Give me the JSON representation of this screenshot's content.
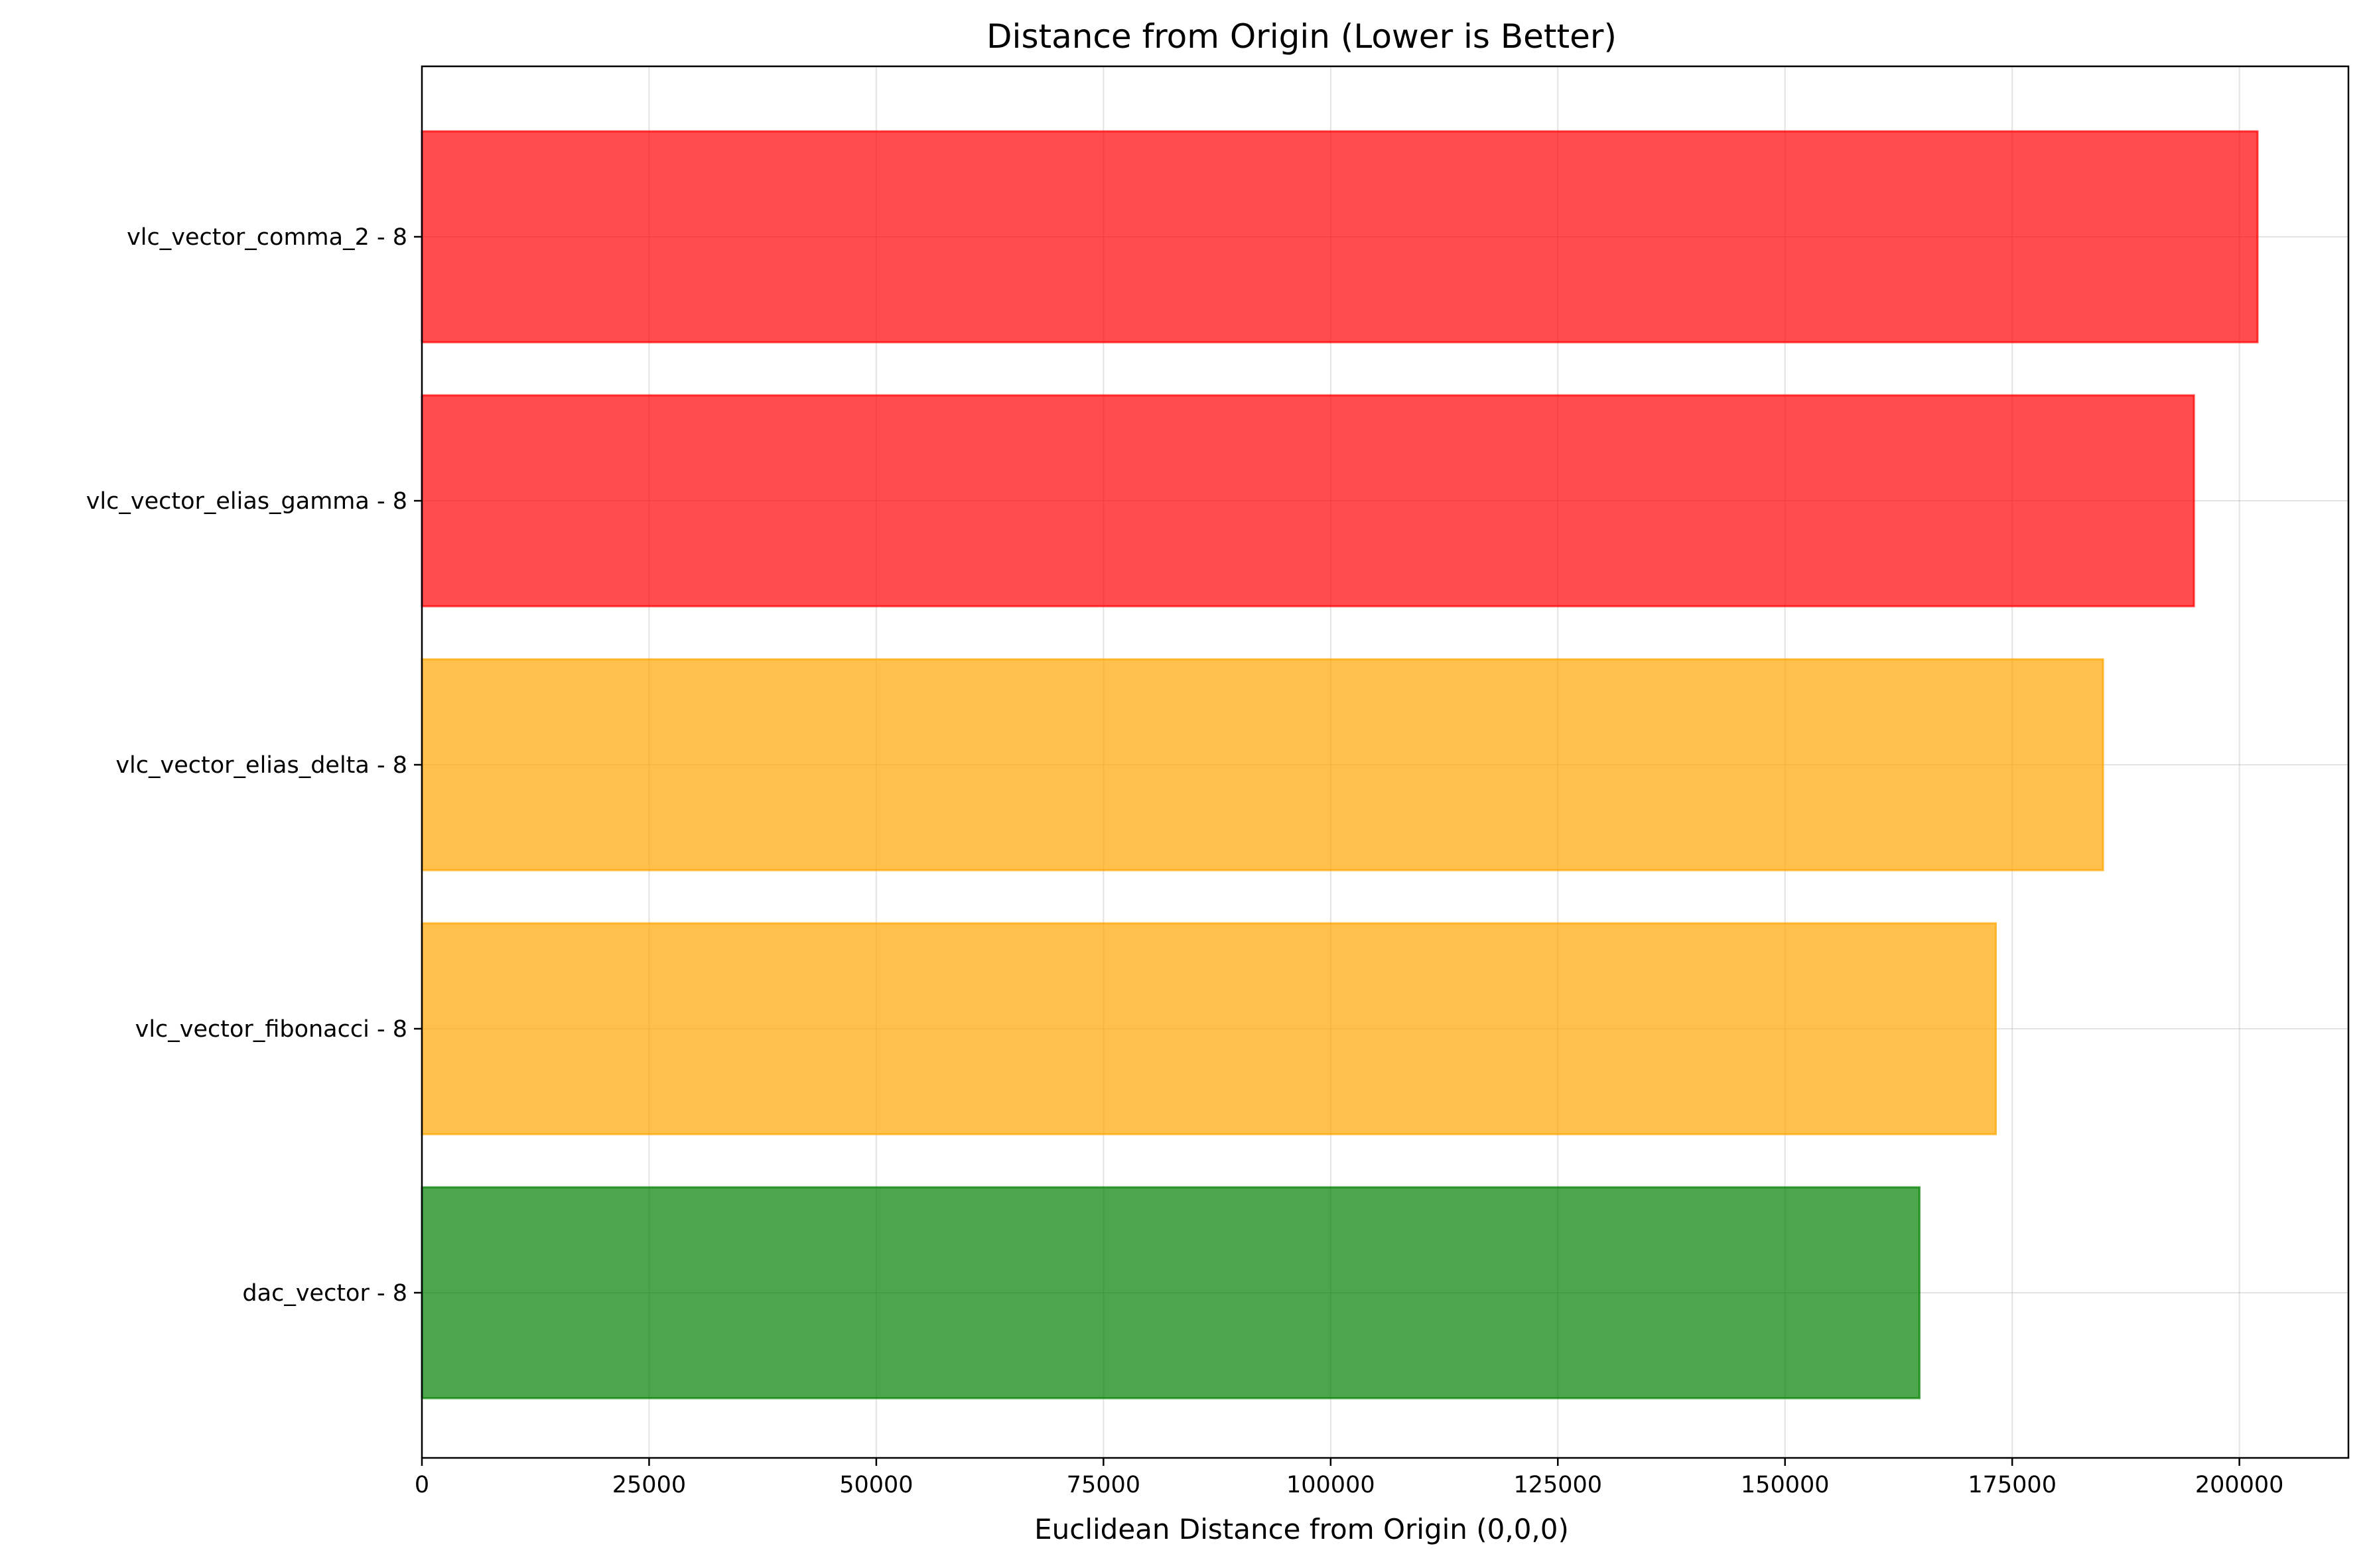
{
  "chart_data": {
    "type": "bar",
    "orientation": "horizontal",
    "title": "Distance from Origin (Lower is Better)",
    "xlabel": "Euclidean Distance from Origin (0,0,0)",
    "ylabel": "",
    "xlim": [
      0,
      212000
    ],
    "xticks": [
      0,
      25000,
      50000,
      75000,
      100000,
      125000,
      150000,
      175000,
      200000
    ],
    "xtick_labels": [
      "0",
      "25000",
      "50000",
      "75000",
      "100000",
      "125000",
      "150000",
      "175000",
      "200000"
    ],
    "grid": true,
    "categories": [
      "vlc_vector_comma_2 - 8",
      "vlc_vector_elias_gamma - 8",
      "vlc_vector_elias_delta - 8",
      "vlc_vector_fibonacci - 8",
      "dac_vector - 8"
    ],
    "values": [
      202000,
      195000,
      185000,
      173200,
      164800
    ],
    "colors": [
      "#ff0000",
      "#ff0000",
      "#ffa500",
      "#ffa500",
      "#008000"
    ],
    "bar_opacity": 0.7
  }
}
